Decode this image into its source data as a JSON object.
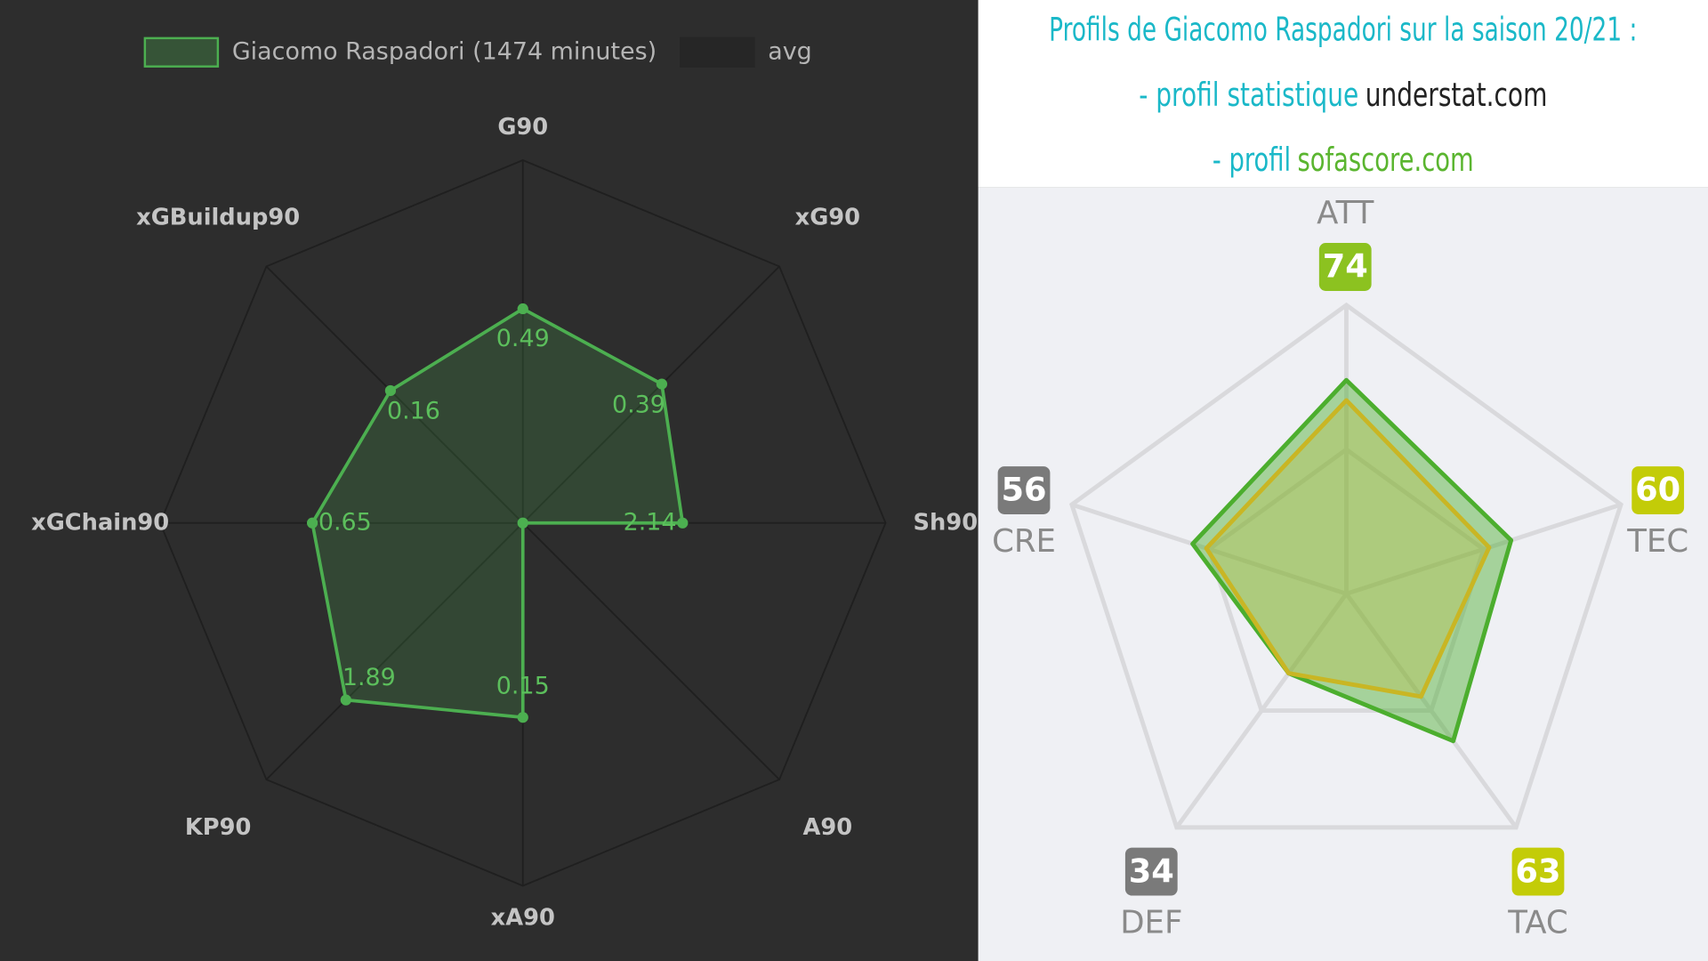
{
  "header": {
    "lines": [
      [
        {
          "text": "Profils de Giacomo Raspadori sur la saison 20/21 :",
          "color": "#1ab8c8"
        }
      ],
      [
        {
          "text": "- profil statistique",
          "color": "#1ab8c8"
        },
        {
          "text": "understat.com",
          "color": "#222222"
        }
      ],
      [
        {
          "text": "- profil",
          "color": "#1ab8c8"
        },
        {
          "text": "sofascore.com",
          "color": "#5ab52f"
        }
      ]
    ]
  },
  "chart_data": [
    {
      "type": "radar",
      "axes": [
        {
          "name": "G90",
          "lim": [
            0,
            0.83
          ]
        },
        {
          "name": "xG90",
          "lim": [
            0,
            0.72
          ]
        },
        {
          "name": "Sh90",
          "lim": [
            0,
            4.86
          ]
        },
        {
          "name": "A90",
          "lim": [
            0,
            0.5
          ]
        },
        {
          "name": "xA90",
          "lim": [
            0,
            0.28
          ]
        },
        {
          "name": "KP90",
          "lim": [
            0,
            2.74
          ]
        },
        {
          "name": "xGChain90",
          "lim": [
            0,
            1.12
          ]
        },
        {
          "name": "xGBuildup90",
          "lim": [
            0,
            0.31
          ]
        }
      ],
      "series": [
        {
          "name": "Giacomo Raspadori (1474 minutes)",
          "color": "#4caf50",
          "values": [
            0.49,
            0.39,
            2.14,
            0,
            0.15,
            1.89,
            0.65,
            0.16
          ],
          "value_labels": [
            "0.49",
            "0.39",
            "2.14",
            null,
            "0.15",
            "1.89",
            "0.65",
            "0.16"
          ]
        },
        {
          "name": "avg",
          "color": "#262626"
        }
      ]
    },
    {
      "type": "radar",
      "categories": [
        "ATT",
        "TEC",
        "TAC",
        "DEF",
        "CRE"
      ],
      "rlim": [
        0,
        100
      ],
      "grid_levels": [
        50,
        100
      ],
      "series": [
        {
          "color": "#4cae2e",
          "values": [
            74,
            60,
            63,
            34,
            56
          ]
        },
        {
          "color": "#c9b624",
          "values": [
            67,
            52,
            44,
            34,
            51
          ]
        }
      ],
      "badge_colors": [
        "#8cc220",
        "#c3cc08",
        "#c3cc08",
        "#7a7a7a",
        "#7a7a7a"
      ]
    }
  ]
}
